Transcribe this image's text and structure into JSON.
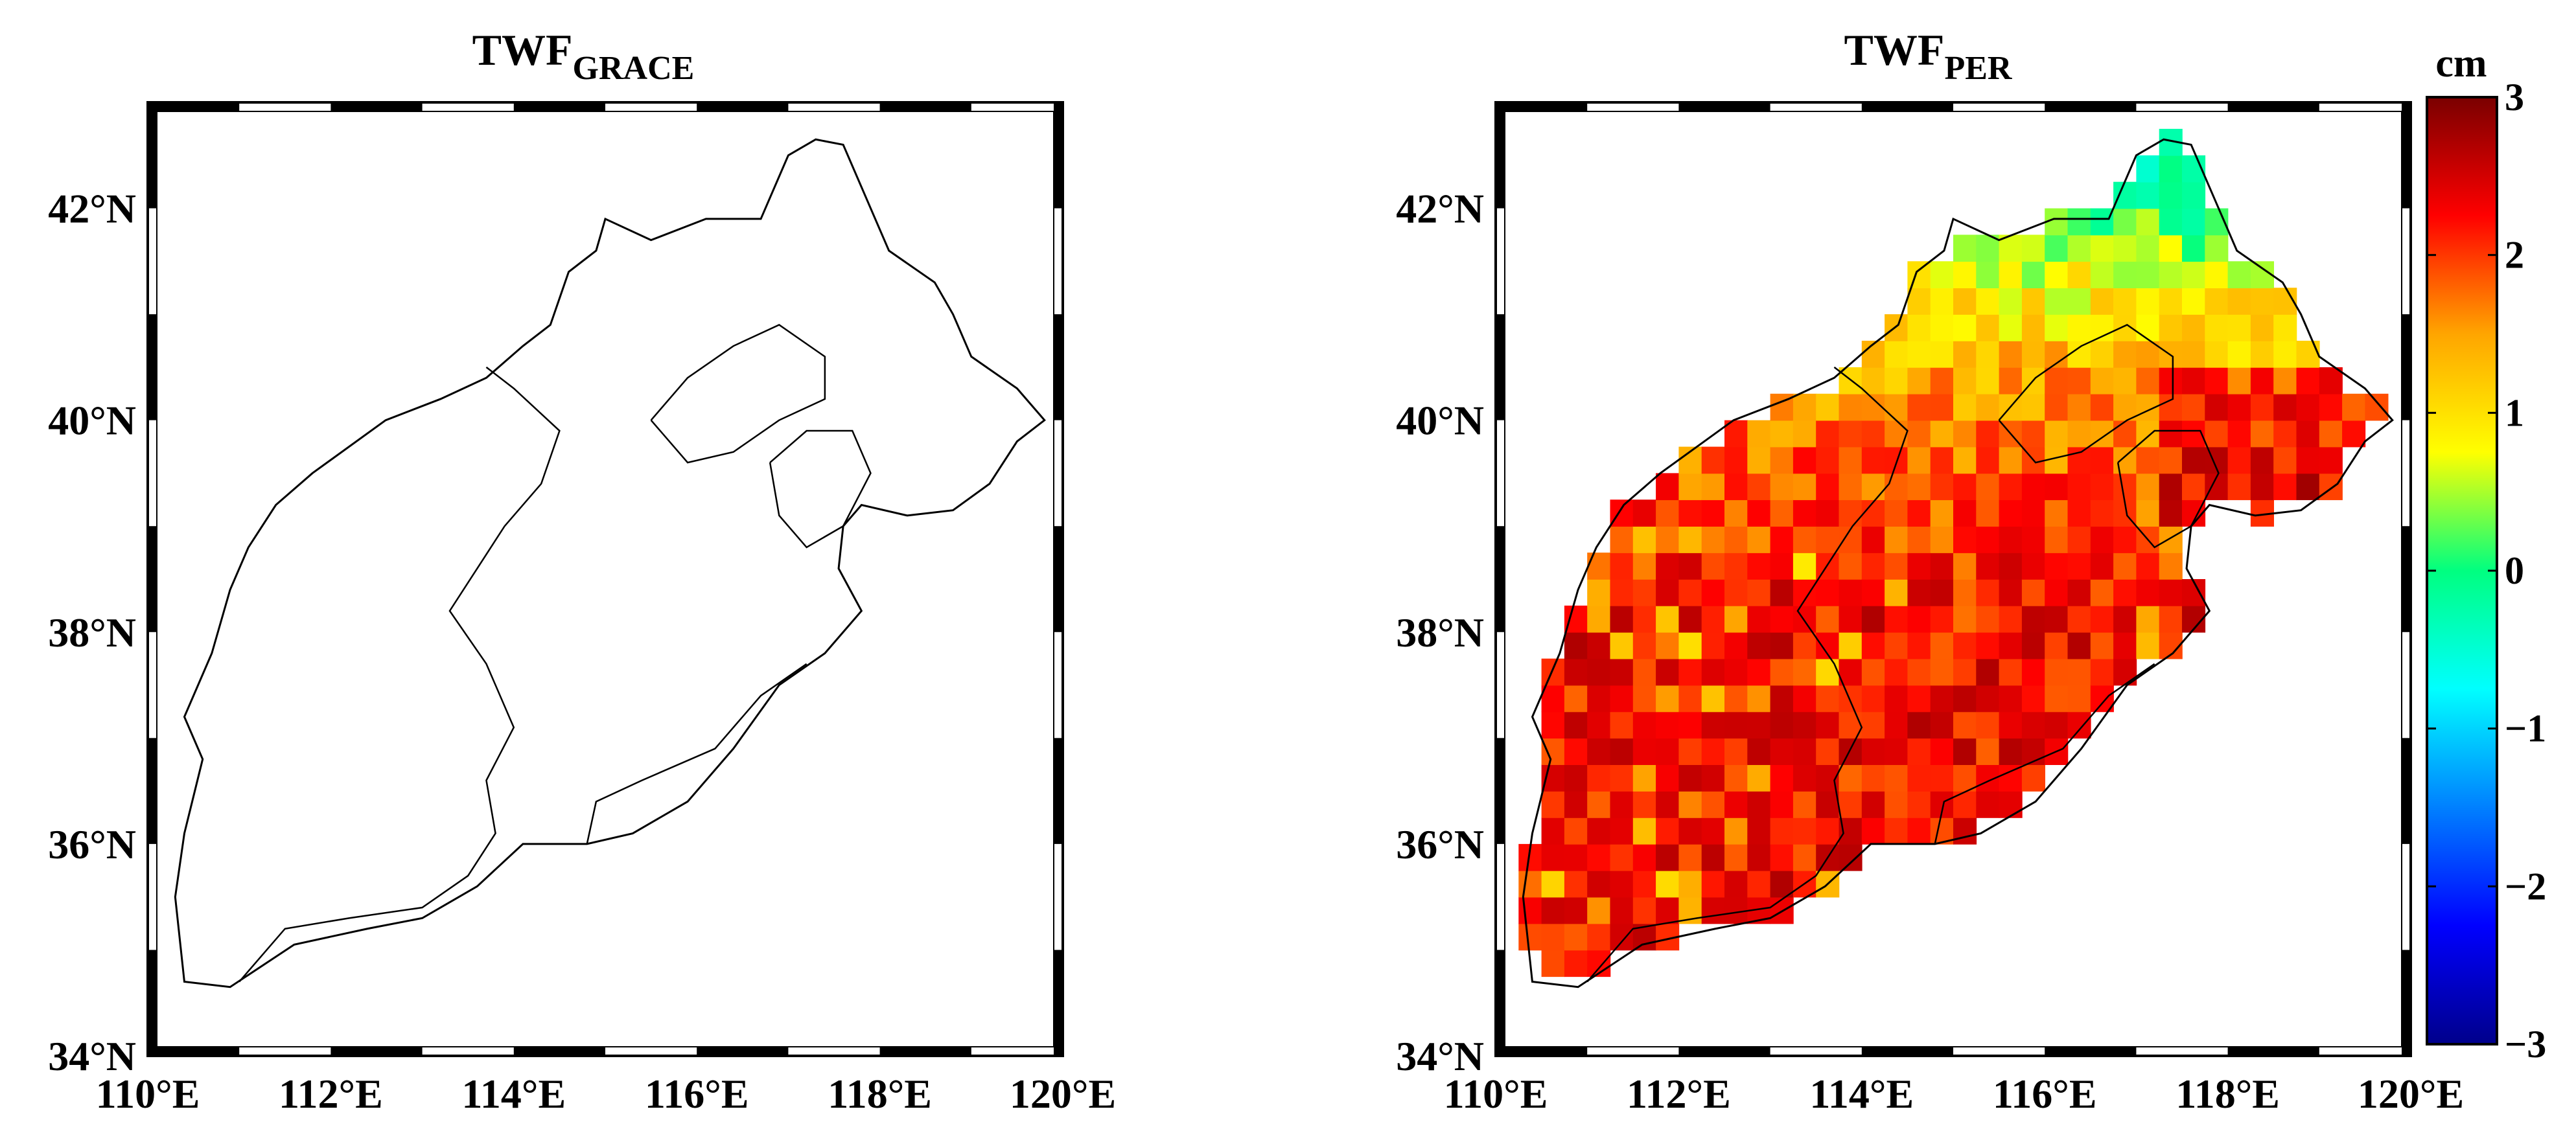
{
  "panels": [
    {
      "title_main": "TWF",
      "title_sub": "GRACE",
      "field": "grace",
      "lat_labels": [
        "34°N",
        "36°N",
        "38°N",
        "40°N",
        "42°N"
      ],
      "lon_labels": [
        "110°E",
        "112°E",
        "114°E",
        "116°E",
        "118°E",
        "120°E"
      ]
    },
    {
      "title_main": "TWF",
      "title_sub": "PER",
      "field": "per",
      "lat_labels": [
        "34°N",
        "36°N",
        "38°N",
        "40°N",
        "42°N"
      ],
      "lon_labels": [
        "110°E",
        "112°E",
        "114°E",
        "116°E",
        "118°E",
        "120°E"
      ]
    }
  ],
  "map_extent": {
    "lon": [
      110,
      120
    ],
    "lat": [
      34,
      43
    ]
  },
  "colorbar": {
    "unit": "cm",
    "range": [
      -3,
      3
    ],
    "tick_labels": [
      "3",
      "2",
      "1",
      "0",
      "−1",
      "−2",
      "−3"
    ],
    "colors": [
      "#7a0000",
      "#ff0000",
      "#ffa500",
      "#ffff00",
      "#00ff80",
      "#00ffff",
      "#0080ff",
      "#0000ff",
      "#00008b"
    ]
  }
}
